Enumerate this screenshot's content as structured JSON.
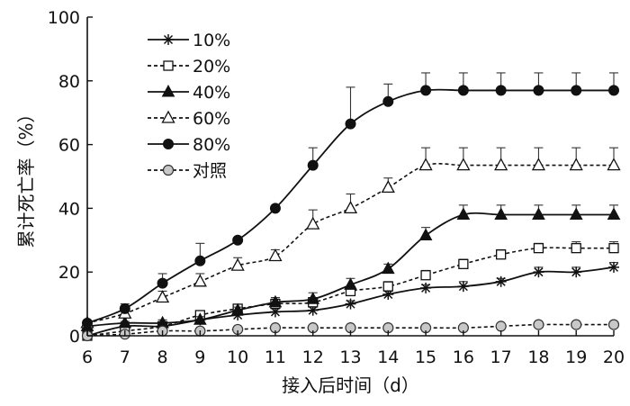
{
  "chart_data": {
    "type": "line",
    "xlabel": "接入后时间（d）",
    "ylabel": "累计死亡率（%）",
    "xlim": [
      6,
      20
    ],
    "ylim": [
      0,
      100
    ],
    "x_ticks": [
      "6",
      "7",
      "8",
      "9",
      "10",
      "11",
      "12",
      "13",
      "14",
      "15",
      "16",
      "17",
      "18",
      "19",
      "20"
    ],
    "y_ticks": [
      "0",
      "20",
      "40",
      "60",
      "80",
      "100"
    ],
    "grid": false,
    "legend_position": "top-left",
    "x": [
      6,
      7,
      8,
      9,
      10,
      11,
      12,
      13,
      14,
      15,
      16,
      17,
      18,
      19,
      20
    ],
    "series": [
      {
        "name": "10%",
        "marker": "star",
        "line": "solid",
        "values": [
          0,
          3,
          3,
          5,
          6.5,
          7.5,
          8,
          10,
          13,
          15,
          15.5,
          17,
          20,
          20,
          21.5
        ],
        "errors": [
          0,
          0.5,
          1,
          1,
          1,
          1,
          1,
          1,
          1,
          1,
          1.5,
          1,
          1.5,
          1.5,
          1.5
        ]
      },
      {
        "name": "20%",
        "marker": "open-square",
        "line": "dashed",
        "values": [
          0,
          1.5,
          3,
          6.5,
          8.5,
          10,
          10.5,
          14,
          15.5,
          19,
          22.5,
          25.5,
          27.5,
          27.5,
          27.5
        ],
        "errors": [
          0,
          0.5,
          1,
          1,
          1,
          1.5,
          1.5,
          1.5,
          1.5,
          1.5,
          1.5,
          1.5,
          1.5,
          2,
          2
        ]
      },
      {
        "name": "40%",
        "marker": "filled-triangle",
        "line": "solid",
        "values": [
          3,
          4,
          4,
          5,
          8,
          10.5,
          11.5,
          16,
          21,
          31.5,
          38,
          38,
          38,
          38,
          38
        ],
        "errors": [
          0.5,
          0.5,
          1,
          1,
          1,
          1.5,
          2,
          2,
          1.5,
          2.5,
          3,
          3,
          3,
          3,
          3
        ]
      },
      {
        "name": "60%",
        "marker": "open-triangle",
        "line": "dashed",
        "values": [
          4,
          7,
          12,
          17,
          22,
          25,
          35,
          40,
          46.5,
          53.5,
          53.5,
          53.5,
          53.5,
          53.5,
          53.5
        ],
        "errors": [
          0.5,
          1,
          2,
          2.5,
          2.5,
          2,
          4.5,
          4.5,
          3,
          5.5,
          5.5,
          5.5,
          5.5,
          5.5,
          5.5
        ]
      },
      {
        "name": "80%",
        "marker": "filled-circle",
        "line": "solid",
        "values": [
          4,
          8.5,
          16.5,
          23.5,
          30,
          40,
          53.5,
          66.5,
          73.5,
          77,
          77,
          77,
          77,
          77,
          77
        ],
        "errors": [
          0.5,
          1.5,
          3,
          5.5,
          0,
          0,
          5.5,
          11.5,
          5.5,
          5.5,
          5.5,
          5.5,
          5.5,
          5.5,
          5.5
        ]
      },
      {
        "name": "对照",
        "marker": "open-circle-gray",
        "line": "dashed",
        "values": [
          0,
          0.5,
          1.5,
          1.5,
          2,
          2.5,
          2.5,
          2.5,
          2.5,
          2.5,
          2.5,
          3,
          3.5,
          3.5,
          3.5
        ],
        "errors": [
          0,
          0,
          0,
          0,
          0,
          0,
          0,
          0,
          0,
          0,
          0,
          0,
          0,
          0,
          0
        ]
      }
    ]
  }
}
